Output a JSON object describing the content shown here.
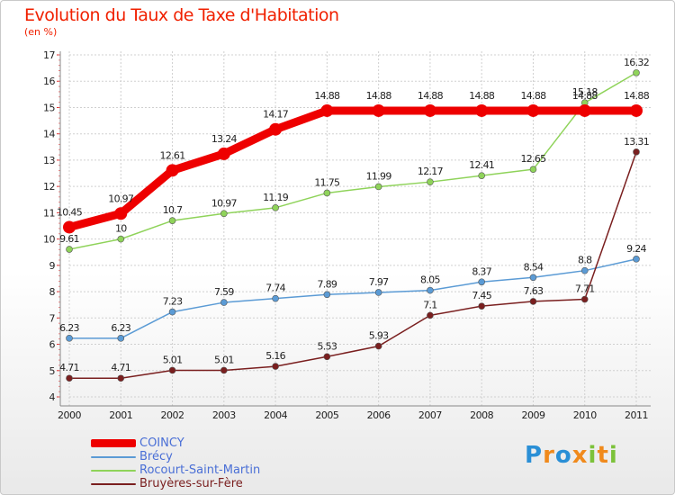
{
  "header": {
    "title": "Evolution du Taux de Taxe d'Habitation",
    "subtitle": "(en %)"
  },
  "logo": {
    "letters": [
      "P",
      "r",
      "o",
      "x",
      "i",
      "t",
      "i"
    ],
    "colors": [
      "#2a8fd6",
      "#f08a1c",
      "#2a8fd6",
      "#f08a1c",
      "#7cc23a",
      "#f08a1c",
      "#7cc23a"
    ]
  },
  "chart_data": {
    "type": "line",
    "title": "Evolution du Taux de Taxe d'Habitation",
    "ylabel": "(en %)",
    "xlabel": "",
    "x": [
      "2000",
      "2001",
      "2002",
      "2003",
      "2004",
      "2005",
      "2006",
      "2007",
      "2008",
      "2009",
      "2010",
      "2011"
    ],
    "ylim": [
      4,
      17
    ],
    "yticks": [
      "4",
      "5",
      "6",
      "7",
      "8",
      "9",
      "10",
      "11",
      "12",
      "13",
      "14",
      "15",
      "16",
      "17"
    ],
    "grid": "horizontal dashed",
    "legend_position": "bottom-left",
    "series": [
      {
        "name": "COINCY",
        "color": "#ee0000",
        "width": 9,
        "marker": 7,
        "values": [
          10.45,
          10.97,
          12.61,
          13.24,
          14.17,
          14.88,
          14.88,
          14.88,
          14.88,
          14.88,
          14.88,
          14.88
        ],
        "labels": [
          "10.45",
          "10.97",
          "12.61",
          "13.24",
          "14.17",
          "14.88",
          "14.88",
          "14.88",
          "14.88",
          "14.88",
          "14.88",
          "14.88"
        ]
      },
      {
        "name": "Brécy",
        "color": "#5b9bd5",
        "width": 1.5,
        "marker": 3.5,
        "values": [
          6.23,
          6.23,
          7.23,
          7.59,
          7.74,
          7.89,
          7.97,
          8.05,
          8.37,
          8.54,
          8.8,
          9.24
        ],
        "labels": [
          "6.23",
          "6.23",
          "7.23",
          "7.59",
          "7.74",
          "7.89",
          "7.97",
          "8.05",
          "8.37",
          "8.54",
          "8.8",
          "9.24"
        ]
      },
      {
        "name": "Rocourt-Saint-Martin",
        "color": "#8fd35a",
        "width": 1.5,
        "marker": 3.5,
        "values": [
          9.61,
          10,
          10.7,
          10.97,
          11.19,
          11.75,
          11.99,
          12.17,
          12.41,
          12.65,
          15.18,
          16.32
        ],
        "labels": [
          "9.61",
          "10",
          "10.7",
          "10.97",
          "11.19",
          "11.75",
          "11.99",
          "12.17",
          "12.41",
          "12.65",
          "15.18",
          "16.32"
        ]
      },
      {
        "name": "Bruyères-sur-Fère",
        "color": "#7a1f1f",
        "width": 1.5,
        "marker": 3.5,
        "values": [
          4.71,
          4.71,
          5.01,
          5.01,
          5.16,
          5.53,
          5.93,
          7.1,
          7.45,
          7.63,
          7.71,
          13.31
        ],
        "labels": [
          "4.71",
          "4.71",
          "5.01",
          "5.01",
          "5.16",
          "5.53",
          "5.93",
          "7.1",
          "7.45",
          "7.63",
          "7.71",
          "13.31"
        ]
      }
    ]
  }
}
